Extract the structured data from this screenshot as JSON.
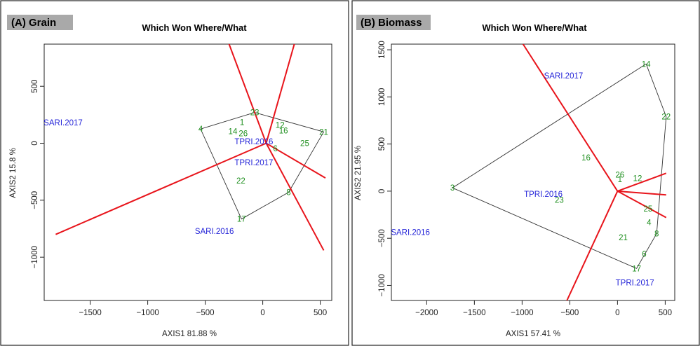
{
  "chart_data": [
    {
      "type": "scatter",
      "panel_tag": "(A) Grain",
      "title": "Which Won Where/What",
      "xlabel": "AXIS1 81.88 %",
      "ylabel": "AXIS2 15.8 %",
      "xlim": [
        -1900,
        600
      ],
      "ylim": [
        -1380,
        870
      ],
      "xticks": [
        -1500,
        -1000,
        -500,
        0,
        500
      ],
      "xtick_labels": [
        "−1500",
        "−1000",
        "−500",
        "0",
        "500"
      ],
      "yticks": [
        500,
        0,
        -500,
        -1000
      ],
      "ytick_labels": [
        "500",
        "0",
        "−500",
        "−1000"
      ],
      "genotypes": [
        {
          "label": "4",
          "x": -540,
          "y": 125
        },
        {
          "label": "14",
          "x": -260,
          "y": 105
        },
        {
          "label": "26",
          "x": -170,
          "y": 85
        },
        {
          "label": "1",
          "x": -180,
          "y": 185
        },
        {
          "label": "23",
          "x": -70,
          "y": 270
        },
        {
          "label": "12",
          "x": 150,
          "y": 160
        },
        {
          "label": "16",
          "x": 180,
          "y": 110
        },
        {
          "label": "21",
          "x": 530,
          "y": 100
        },
        {
          "label": "25",
          "x": 365,
          "y": 0
        },
        {
          "label": "6",
          "x": 110,
          "y": -45
        },
        {
          "label": "22",
          "x": -190,
          "y": -330
        },
        {
          "label": "8",
          "x": 225,
          "y": -430
        },
        {
          "label": "17",
          "x": -185,
          "y": -665
        }
      ],
      "environments": [
        {
          "label": "SARI.2017",
          "x": -1905,
          "y": 180
        },
        {
          "label": "TPRI.2016",
          "x": -245,
          "y": 15
        },
        {
          "label": "TPRI.2017",
          "x": -245,
          "y": -170
        },
        {
          "label": "SARI.2016",
          "x": -590,
          "y": -770
        }
      ],
      "hull": [
        [
          -540,
          125
        ],
        [
          -70,
          270
        ],
        [
          530,
          100
        ],
        [
          225,
          -430
        ],
        [
          -185,
          -665
        ]
      ],
      "origin": [
        30,
        0
      ],
      "rays": [
        [
          -300,
          890
        ],
        [
          280,
          890
        ],
        [
          545,
          -305
        ],
        [
          530,
          -940
        ],
        [
          -1800,
          -800
        ]
      ]
    },
    {
      "type": "scatter",
      "panel_tag": "(B) Biomass",
      "title": "Which Won Where/What",
      "xlabel": "AXIS1 57.41 %",
      "ylabel": "AXIS2 21.95 %",
      "xlim": [
        -2370,
        600
      ],
      "ylim": [
        -1160,
        1560
      ],
      "xticks": [
        -2000,
        -1500,
        -1000,
        -500,
        0,
        500
      ],
      "xtick_labels": [
        "−2000",
        "−1500",
        "−1000",
        "−500",
        "0",
        "500"
      ],
      "yticks": [
        1500,
        1000,
        500,
        0,
        -500,
        -1000
      ],
      "ytick_labels": [
        "1500",
        "1000",
        "500",
        "0",
        "−500",
        "−1000"
      ],
      "genotypes": [
        {
          "label": "14",
          "x": 300,
          "y": 1350
        },
        {
          "label": "22",
          "x": 510,
          "y": 790
        },
        {
          "label": "3",
          "x": -1730,
          "y": 35
        },
        {
          "label": "16",
          "x": -330,
          "y": 355
        },
        {
          "label": "26",
          "x": 25,
          "y": 175
        },
        {
          "label": "1",
          "x": 25,
          "y": 125
        },
        {
          "label": "12",
          "x": 210,
          "y": 135
        },
        {
          "label": "23",
          "x": -610,
          "y": -95
        },
        {
          "label": "25",
          "x": 320,
          "y": -185
        },
        {
          "label": "4",
          "x": 330,
          "y": -330
        },
        {
          "label": "8",
          "x": 410,
          "y": -450
        },
        {
          "label": "21",
          "x": 60,
          "y": -490
        },
        {
          "label": "6",
          "x": 280,
          "y": -665
        },
        {
          "label": "17",
          "x": 200,
          "y": -820
        }
      ],
      "environments": [
        {
          "label": "SARI.2017",
          "x": -770,
          "y": 1225
        },
        {
          "label": "TPRI.2016",
          "x": -980,
          "y": -30
        },
        {
          "label": "SARI.2016",
          "x": -2375,
          "y": -435
        },
        {
          "label": "TPRI.2017",
          "x": -20,
          "y": -970
        }
      ],
      "hull": [
        [
          300,
          1350
        ],
        [
          510,
          790
        ],
        [
          410,
          -450
        ],
        [
          200,
          -820
        ],
        [
          -1730,
          35
        ]
      ],
      "origin": [
        0,
        0
      ],
      "rays": [
        [
          -990,
          1560
        ],
        [
          510,
          190
        ],
        [
          510,
          -40
        ],
        [
          510,
          -280
        ],
        [
          -530,
          -1160
        ]
      ]
    }
  ]
}
